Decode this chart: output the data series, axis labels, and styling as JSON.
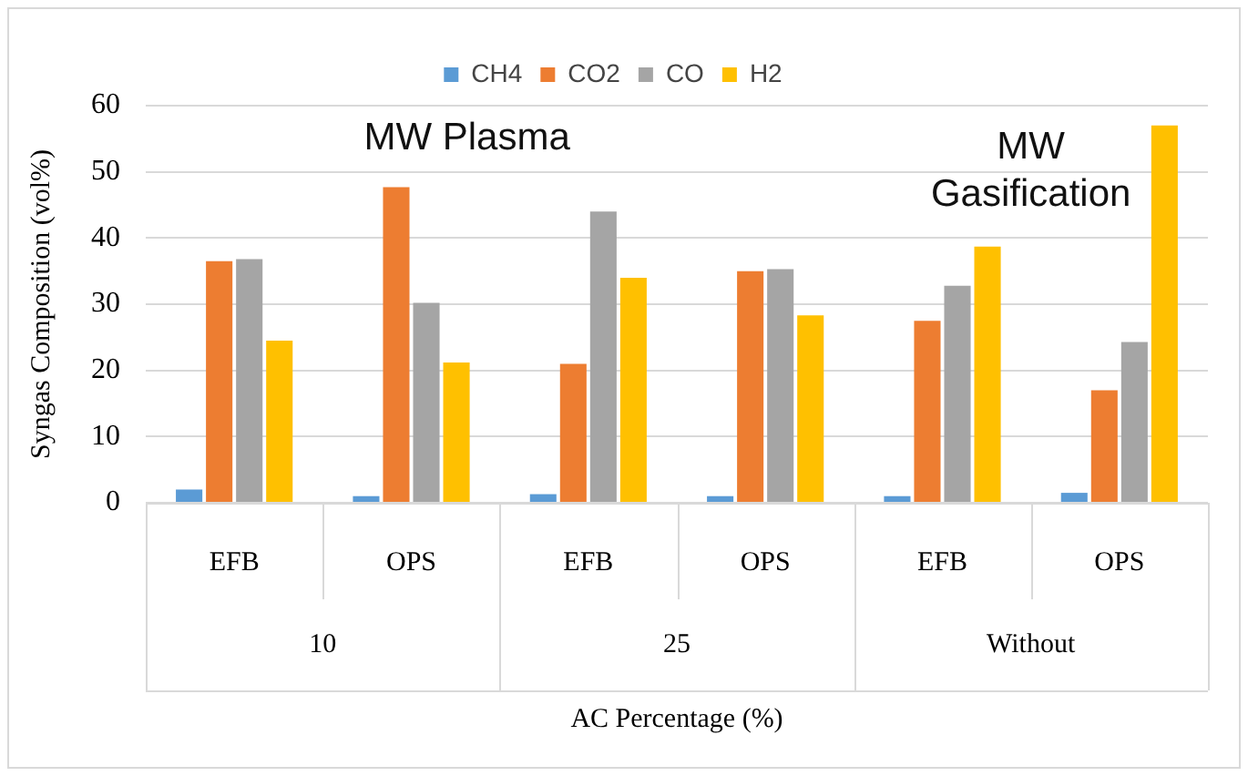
{
  "chart_data": {
    "type": "bar",
    "xlabel": "AC Percentage (%)",
    "ylabel": "Syngas Composition (vol%)",
    "categories": [
      "EFB",
      "OPS",
      "EFB",
      "OPS",
      "EFB",
      "OPS"
    ],
    "series": [
      {
        "name": "CH4",
        "color": "#5b9bd5",
        "values": [
          2.0,
          1.0,
          1.3,
          1.0,
          1.0,
          1.5
        ]
      },
      {
        "name": "CO2",
        "color": "#ed7d31",
        "values": [
          36.5,
          47.7,
          21.0,
          35.0,
          27.5,
          17.0
        ]
      },
      {
        "name": "CO",
        "color": "#a5a5a5",
        "values": [
          36.8,
          30.2,
          44.0,
          35.3,
          32.8,
          24.3
        ]
      },
      {
        "name": "H2",
        "color": "#ffc000",
        "values": [
          24.5,
          21.2,
          34.0,
          28.3,
          38.7,
          57.0
        ]
      }
    ],
    "annotations": [
      "MW Plasma",
      "MW\nGasification",
      "10",
      "25",
      "Without"
    ],
    "ylim": [
      0,
      60
    ],
    "yticks": [
      0,
      10,
      20,
      30,
      40,
      50,
      60
    ],
    "grid": "y",
    "legend": "top"
  }
}
